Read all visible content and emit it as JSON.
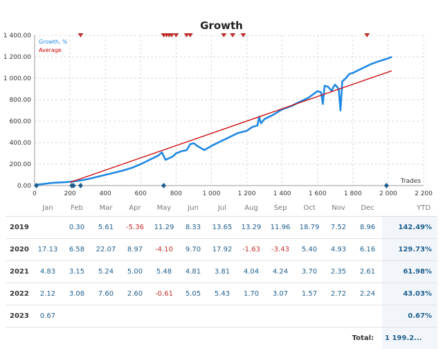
{
  "chart_data": {
    "type": "line",
    "title": "Growth",
    "xlabel": "Trades",
    "ylabel": "",
    "xlim": [
      0,
      2200
    ],
    "ylim": [
      0,
      1400
    ],
    "x_ticks": [
      "0",
      "200",
      "400",
      "600",
      "800",
      "1 000",
      "1 200",
      "1 400",
      "1 600",
      "1 800",
      "2 000",
      "2 200"
    ],
    "y_ticks": [
      "0.00",
      "200.00",
      "400.00",
      "600.00",
      "800.00",
      "1 000.00",
      "1 200.00",
      "1 400.00"
    ],
    "legend": [
      "Growth, %",
      "Average"
    ],
    "legend_position": "top-left",
    "grid": true,
    "series": [
      {
        "name": "Growth, %",
        "color": "#1e88e5",
        "x": [
          0,
          20,
          50,
          100,
          150,
          200,
          250,
          300,
          350,
          400,
          450,
          500,
          550,
          600,
          650,
          700,
          720,
          740,
          780,
          800,
          830,
          860,
          880,
          900,
          920,
          960,
          1000,
          1050,
          1100,
          1150,
          1200,
          1230,
          1260,
          1270,
          1280,
          1300,
          1350,
          1400,
          1450,
          1500,
          1550,
          1600,
          1620,
          1630,
          1640,
          1660,
          1680,
          1690,
          1700,
          1720,
          1730,
          1740,
          1760,
          1780,
          1800,
          1850,
          1900,
          1950,
          2000,
          2020
        ],
        "y": [
          0,
          10,
          15,
          25,
          30,
          35,
          45,
          60,
          80,
          100,
          120,
          140,
          165,
          200,
          240,
          280,
          310,
          240,
          270,
          300,
          320,
          330,
          385,
          395,
          370,
          330,
          370,
          410,
          450,
          490,
          510,
          545,
          560,
          640,
          580,
          620,
          660,
          710,
          740,
          780,
          820,
          880,
          870,
          760,
          930,
          920,
          880,
          920,
          940,
          900,
          700,
          970,
          1000,
          1040,
          1050,
          1090,
          1130,
          1160,
          1185,
          1200
        ]
      },
      {
        "name": "Average",
        "color": "#cc0000",
        "x": [
          200,
          2020
        ],
        "y": [
          30,
          1070
        ]
      }
    ],
    "markers": {
      "top": [
        260,
        730,
        745,
        760,
        775,
        800,
        860,
        880,
        1070,
        1120,
        1180,
        1880
      ],
      "bottom": [
        10,
        210,
        220,
        260,
        730,
        1990
      ]
    }
  },
  "table": {
    "columns": [
      "",
      "Jan",
      "Feb",
      "Mar",
      "Apr",
      "May",
      "Jun",
      "Jul",
      "Aug",
      "Sep",
      "Oct",
      "Nov",
      "Dec",
      "YTD"
    ],
    "rows": [
      {
        "year": "2019",
        "months": [
          "",
          "0.30",
          "5.61",
          "-5.36",
          "11.29",
          "8.33",
          "13.65",
          "13.29",
          "11.96",
          "18.79",
          "7.52",
          "8.96"
        ],
        "ytd": "142.49%"
      },
      {
        "year": "2020",
        "months": [
          "17.13",
          "6.58",
          "22.07",
          "8.97",
          "-4.10",
          "9.70",
          "17.92",
          "-1.63",
          "-3.43",
          "5.40",
          "4.93",
          "6.16"
        ],
        "ytd": "129.73%"
      },
      {
        "year": "2021",
        "months": [
          "4.83",
          "3.15",
          "5.24",
          "5.00",
          "5.48",
          "4.81",
          "3.81",
          "4.04",
          "4.24",
          "3.70",
          "2.35",
          "2.61"
        ],
        "ytd": "61.98%"
      },
      {
        "year": "2022",
        "months": [
          "2.12",
          "3.08",
          "7.60",
          "2.60",
          "-0.61",
          "5.05",
          "5.43",
          "1.70",
          "3.07",
          "1.57",
          "2.72",
          "2.24"
        ],
        "ytd": "43.03%"
      },
      {
        "year": "2023",
        "months": [
          "0.67",
          "",
          "",
          "",
          "",
          "",
          "",
          "",
          "",
          "",
          "",
          ""
        ],
        "ytd": "0.67%"
      }
    ],
    "total_label": "Total:",
    "total_value": "1 199.2..."
  }
}
